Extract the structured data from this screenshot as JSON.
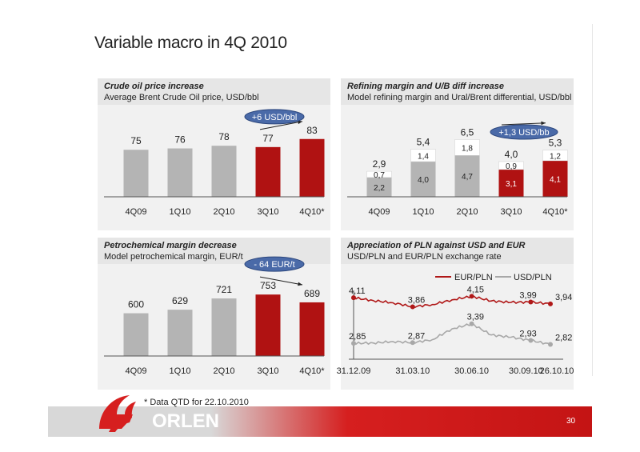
{
  "page": {
    "title": "Variable macro in 4Q 2010",
    "footnote": "* Data QTD for 22.10.2010",
    "page_number": "30",
    "logo_text": "ORLEN"
  },
  "colors": {
    "grey_bar": "#b4b4b4",
    "red_bar": "#b01212",
    "oval_fill": "#4a6aa8",
    "eur_line": "#b01818",
    "usd_line": "#a8a8a8"
  },
  "panels": [
    {
      "title": "Crude oil price increase",
      "subtitle": "Average Brent Crude Oil price, USD/bbl",
      "badge": "+6 USD/bbl"
    },
    {
      "title": "Refining margin and U/B diff  increase",
      "subtitle": "Model refining margin and Ural/Brent differential, USD/bbl",
      "badge": "+1,3 USD/bb"
    },
    {
      "title": "Petrochemical margin decrease",
      "subtitle": "Model petrochemical margin, EUR/t",
      "badge": "- 64 EUR/t"
    },
    {
      "title": "Appreciation of PLN against USD and EUR",
      "subtitle": "USD/PLN and EUR/PLN exchange rate",
      "badge": ""
    }
  ],
  "chart_data": [
    {
      "type": "bar",
      "categories": [
        "4Q09",
        "1Q10",
        "2Q10",
        "3Q10",
        "4Q10*"
      ],
      "values": [
        75,
        76,
        78,
        77,
        83
      ],
      "labels": [
        "75",
        "76",
        "78",
        "77",
        "83"
      ],
      "ylim": [
        40,
        90
      ],
      "colors": [
        "grey",
        "grey",
        "grey",
        "red",
        "red"
      ],
      "annotation": "+6 USD/bbl"
    },
    {
      "type": "bar",
      "stacked": true,
      "categories": [
        "4Q09",
        "1Q10",
        "2Q10",
        "3Q10",
        "4Q10*"
      ],
      "series": [
        {
          "values": [
            2.2,
            4.0,
            4.7,
            3.1,
            4.1
          ],
          "labels": [
            "2,2",
            "4,0",
            "4,7",
            "3,1",
            "4,1"
          ]
        },
        {
          "values": [
            0.7,
            1.4,
            1.8,
            0.9,
            1.2
          ],
          "labels": [
            "0,7",
            "1,4",
            "1,8",
            "0,9",
            "1,2"
          ]
        }
      ],
      "totals": [
        "2,9",
        "5,4",
        "6,5",
        "4,0",
        "5,3"
      ],
      "ylim": [
        0,
        8
      ],
      "colors": [
        "grey",
        "grey",
        "grey",
        "red",
        "red"
      ],
      "annotation": "+1,3 USD/bb"
    },
    {
      "type": "bar",
      "categories": [
        "4Q09",
        "1Q10",
        "2Q10",
        "3Q10",
        "4Q10*"
      ],
      "values": [
        600,
        629,
        721,
        753,
        689
      ],
      "labels": [
        "600",
        "629",
        "721",
        "753",
        "689"
      ],
      "ylim": [
        250,
        800
      ],
      "colors": [
        "grey",
        "grey",
        "grey",
        "red",
        "red"
      ],
      "annotation": "- 64 EUR/t"
    },
    {
      "type": "line",
      "x_ticks": [
        "31.12.09",
        "31.03.10",
        "30.06.10",
        "30.09.10",
        "26.10.10"
      ],
      "series": [
        {
          "name": "EUR/PLN",
          "color": "eur",
          "x": [
            "31.12.09",
            "31.01.10",
            "28.02.10",
            "31.03.10",
            "30.04.10",
            "31.05.10",
            "30.06.10",
            "31.07.10",
            "31.08.10",
            "30.09.10",
            "26.10.10"
          ],
          "values": [
            4.11,
            4.03,
            3.97,
            3.86,
            3.92,
            4.05,
            4.15,
            4.02,
            3.98,
            3.99,
            3.94
          ]
        },
        {
          "name": "USD/PLN",
          "color": "usd",
          "x": [
            "31.12.09",
            "31.01.10",
            "28.02.10",
            "31.03.10",
            "30.04.10",
            "31.05.10",
            "30.06.10",
            "31.07.10",
            "31.08.10",
            "30.09.10",
            "26.10.10"
          ],
          "values": [
            2.85,
            2.86,
            2.9,
            2.87,
            2.95,
            3.25,
            3.39,
            3.08,
            3.02,
            2.93,
            2.82
          ]
        }
      ],
      "point_labels": [
        {
          "series": "EUR/PLN",
          "x": "31.12.09",
          "label": "4,11"
        },
        {
          "series": "EUR/PLN",
          "x": "31.03.10",
          "label": "3,86"
        },
        {
          "series": "EUR/PLN",
          "x": "30.06.10",
          "label": "4,15"
        },
        {
          "series": "EUR/PLN",
          "x": "30.09.10",
          "label": "3,99"
        },
        {
          "series": "EUR/PLN",
          "x": "26.10.10",
          "label": "3,94"
        },
        {
          "series": "USD/PLN",
          "x": "31.12.09",
          "label": "2,85"
        },
        {
          "series": "USD/PLN",
          "x": "31.03.10",
          "label": "2,87"
        },
        {
          "series": "USD/PLN",
          "x": "30.06.10",
          "label": "3,39"
        },
        {
          "series": "USD/PLN",
          "x": "30.09.10",
          "label": "2,93"
        },
        {
          "series": "USD/PLN",
          "x": "26.10.10",
          "label": "2,82"
        }
      ],
      "legend": "top",
      "ylim": [
        2.5,
        4.4
      ]
    }
  ]
}
